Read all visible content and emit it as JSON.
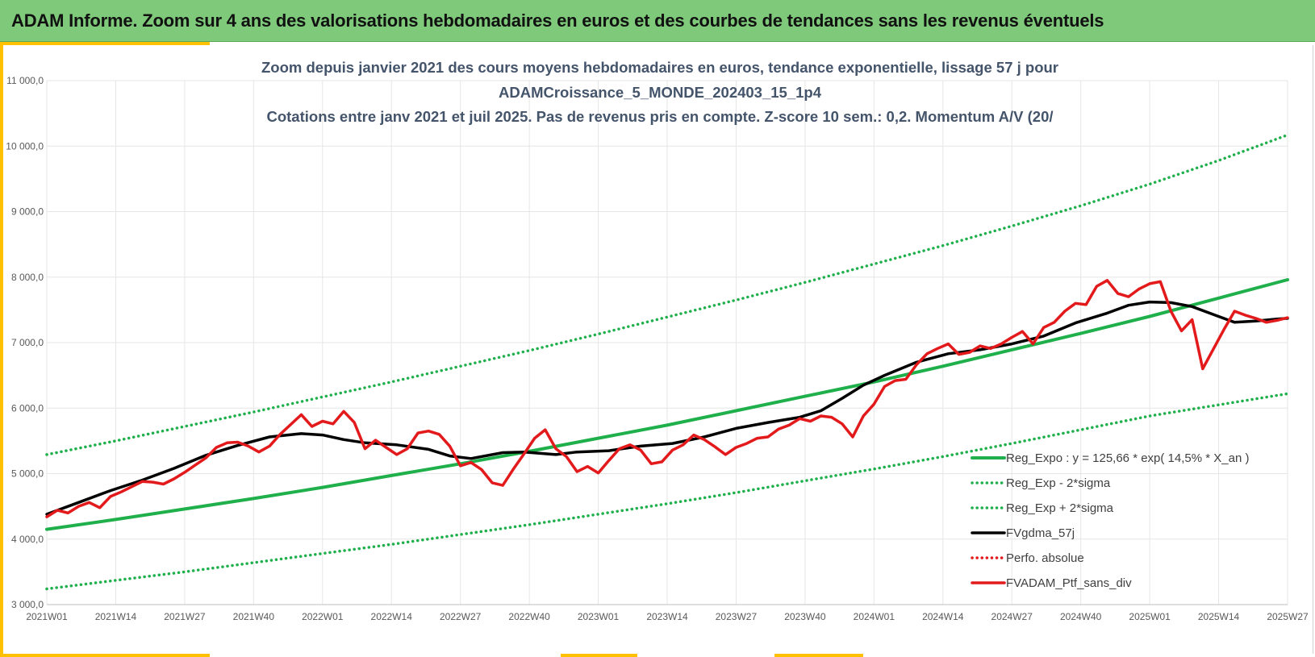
{
  "banner": {
    "title": "ADAM Informe. Zoom sur 4 ans des valorisations hebdomadaires en euros et des courbes de tendances sans les revenus éventuels"
  },
  "chart_data": {
    "type": "line",
    "title_lines": [
      "Zoom depuis janvier 2021 des cours moyens hebdomadaires  en euros, tendance exponentielle, lissage 57 j pour",
      "ADAMCroissance_5_MONDE_202403_15_1p4",
      "Cotations  entre janv 2021 et juil 2025. Pas de revenus pris en compte. Z-score 10 sem.: 0,2. Momentum  A/V (20/"
    ],
    "xlabel": "",
    "ylabel": "",
    "ylim": [
      3000,
      11000
    ],
    "y_ticks": [
      "3 000,0",
      "4 000,0",
      "5 000,0",
      "6 000,0",
      "7 000,0",
      "8 000,0",
      "9 000,0",
      "10 000,0",
      "11 000,0"
    ],
    "x_ticks": [
      "2021W01",
      "2021W14",
      "2021W27",
      "2021W40",
      "2022W01",
      "2022W14",
      "2022W27",
      "2022W40",
      "2023W01",
      "2023W14",
      "2023W27",
      "2023W40",
      "2024W01",
      "2024W14",
      "2024W27",
      "2024W40",
      "2025W01",
      "2025W14",
      "2025W27"
    ],
    "grid": true,
    "legend_position": "bottom-right",
    "colors": {
      "reg_expo": "#1fb04c",
      "sigma": "#1fb04c",
      "fvgdma": "#000000",
      "perfo": "#e31a1c",
      "ptf": "#e31a1c",
      "grid": "#e6e6e6"
    },
    "series": [
      {
        "name": "Reg_Expo : y = 125,66 * exp( 14,5% *  X_an )",
        "style": "solid",
        "points": [
          [
            0,
            4150
          ],
          [
            13,
            4300
          ],
          [
            26,
            4460
          ],
          [
            39,
            4620
          ],
          [
            52,
            4790
          ],
          [
            65,
            4970
          ],
          [
            78,
            5150
          ],
          [
            91,
            5340
          ],
          [
            104,
            5540
          ],
          [
            117,
            5740
          ],
          [
            130,
            5960
          ],
          [
            143,
            6180
          ],
          [
            156,
            6400
          ],
          [
            169,
            6640
          ],
          [
            182,
            6890
          ],
          [
            195,
            7140
          ],
          [
            208,
            7400
          ],
          [
            221,
            7680
          ],
          [
            234,
            7960
          ]
        ]
      },
      {
        "name": "Reg_Exp - 2*sigma",
        "style": "dotted",
        "points": [
          [
            0,
            3240
          ],
          [
            13,
            3370
          ],
          [
            26,
            3500
          ],
          [
            39,
            3640
          ],
          [
            52,
            3780
          ],
          [
            65,
            3920
          ],
          [
            78,
            4070
          ],
          [
            91,
            4220
          ],
          [
            104,
            4380
          ],
          [
            117,
            4540
          ],
          [
            130,
            4710
          ],
          [
            143,
            4890
          ],
          [
            156,
            5070
          ],
          [
            169,
            5260
          ],
          [
            182,
            5460
          ],
          [
            195,
            5670
          ],
          [
            208,
            5880
          ],
          [
            221,
            6050
          ],
          [
            234,
            6220
          ]
        ]
      },
      {
        "name": "Reg_Exp + 2*sigma",
        "style": "dotted",
        "points": [
          [
            0,
            5290
          ],
          [
            13,
            5500
          ],
          [
            26,
            5720
          ],
          [
            39,
            5940
          ],
          [
            52,
            6170
          ],
          [
            65,
            6400
          ],
          [
            78,
            6640
          ],
          [
            91,
            6880
          ],
          [
            104,
            7130
          ],
          [
            117,
            7390
          ],
          [
            130,
            7650
          ],
          [
            143,
            7920
          ],
          [
            156,
            8200
          ],
          [
            169,
            8480
          ],
          [
            182,
            8780
          ],
          [
            195,
            9090
          ],
          [
            208,
            9420
          ],
          [
            221,
            9780
          ],
          [
            234,
            10170
          ]
        ]
      },
      {
        "name": "FVgdma_57j",
        "style": "solid",
        "points": [
          [
            0,
            4380
          ],
          [
            6,
            4560
          ],
          [
            12,
            4740
          ],
          [
            18,
            4900
          ],
          [
            24,
            5080
          ],
          [
            30,
            5280
          ],
          [
            36,
            5430
          ],
          [
            42,
            5560
          ],
          [
            48,
            5610
          ],
          [
            52,
            5590
          ],
          [
            56,
            5520
          ],
          [
            60,
            5470
          ],
          [
            66,
            5440
          ],
          [
            72,
            5370
          ],
          [
            76,
            5270
          ],
          [
            80,
            5230
          ],
          [
            86,
            5320
          ],
          [
            90,
            5330
          ],
          [
            96,
            5290
          ],
          [
            100,
            5330
          ],
          [
            106,
            5350
          ],
          [
            112,
            5420
          ],
          [
            118,
            5460
          ],
          [
            124,
            5560
          ],
          [
            130,
            5690
          ],
          [
            136,
            5780
          ],
          [
            142,
            5860
          ],
          [
            146,
            5960
          ],
          [
            150,
            6150
          ],
          [
            154,
            6350
          ],
          [
            158,
            6500
          ],
          [
            164,
            6700
          ],
          [
            170,
            6830
          ],
          [
            176,
            6890
          ],
          [
            182,
            6980
          ],
          [
            188,
            7100
          ],
          [
            194,
            7300
          ],
          [
            200,
            7450
          ],
          [
            204,
            7570
          ],
          [
            208,
            7620
          ],
          [
            212,
            7610
          ],
          [
            216,
            7550
          ],
          [
            220,
            7430
          ],
          [
            224,
            7310
          ],
          [
            228,
            7330
          ],
          [
            232,
            7360
          ],
          [
            234,
            7370
          ]
        ]
      },
      {
        "name": "Perfo. absolue",
        "style": "dotted",
        "points": []
      },
      {
        "name": "FVADAM_Ptf_sans_div",
        "style": "solid",
        "points": [
          [
            0,
            4340
          ],
          [
            2,
            4440
          ],
          [
            4,
            4400
          ],
          [
            6,
            4500
          ],
          [
            8,
            4560
          ],
          [
            10,
            4480
          ],
          [
            12,
            4650
          ],
          [
            14,
            4720
          ],
          [
            16,
            4800
          ],
          [
            18,
            4880
          ],
          [
            20,
            4870
          ],
          [
            22,
            4840
          ],
          [
            24,
            4920
          ],
          [
            26,
            5020
          ],
          [
            28,
            5130
          ],
          [
            30,
            5240
          ],
          [
            32,
            5400
          ],
          [
            34,
            5470
          ],
          [
            36,
            5480
          ],
          [
            38,
            5420
          ],
          [
            40,
            5330
          ],
          [
            42,
            5420
          ],
          [
            44,
            5600
          ],
          [
            46,
            5750
          ],
          [
            48,
            5900
          ],
          [
            50,
            5720
          ],
          [
            52,
            5800
          ],
          [
            54,
            5760
          ],
          [
            56,
            5950
          ],
          [
            58,
            5780
          ],
          [
            60,
            5380
          ],
          [
            62,
            5510
          ],
          [
            64,
            5400
          ],
          [
            66,
            5290
          ],
          [
            68,
            5380
          ],
          [
            70,
            5620
          ],
          [
            72,
            5650
          ],
          [
            74,
            5600
          ],
          [
            76,
            5420
          ],
          [
            78,
            5120
          ],
          [
            80,
            5170
          ],
          [
            82,
            5060
          ],
          [
            84,
            4860
          ],
          [
            86,
            4820
          ],
          [
            88,
            5070
          ],
          [
            90,
            5300
          ],
          [
            92,
            5540
          ],
          [
            94,
            5670
          ],
          [
            96,
            5380
          ],
          [
            98,
            5260
          ],
          [
            100,
            5030
          ],
          [
            102,
            5110
          ],
          [
            104,
            5010
          ],
          [
            106,
            5200
          ],
          [
            108,
            5380
          ],
          [
            110,
            5440
          ],
          [
            112,
            5360
          ],
          [
            114,
            5150
          ],
          [
            116,
            5180
          ],
          [
            118,
            5360
          ],
          [
            120,
            5440
          ],
          [
            122,
            5590
          ],
          [
            124,
            5520
          ],
          [
            126,
            5410
          ],
          [
            128,
            5290
          ],
          [
            130,
            5400
          ],
          [
            132,
            5460
          ],
          [
            134,
            5540
          ],
          [
            136,
            5560
          ],
          [
            138,
            5680
          ],
          [
            140,
            5740
          ],
          [
            142,
            5840
          ],
          [
            144,
            5800
          ],
          [
            146,
            5880
          ],
          [
            148,
            5860
          ],
          [
            150,
            5760
          ],
          [
            152,
            5560
          ],
          [
            154,
            5880
          ],
          [
            156,
            6060
          ],
          [
            158,
            6330
          ],
          [
            160,
            6420
          ],
          [
            162,
            6440
          ],
          [
            164,
            6660
          ],
          [
            166,
            6830
          ],
          [
            168,
            6910
          ],
          [
            170,
            6980
          ],
          [
            172,
            6820
          ],
          [
            174,
            6850
          ],
          [
            176,
            6950
          ],
          [
            178,
            6910
          ],
          [
            180,
            6980
          ],
          [
            182,
            7080
          ],
          [
            184,
            7170
          ],
          [
            186,
            6980
          ],
          [
            188,
            7230
          ],
          [
            190,
            7310
          ],
          [
            192,
            7480
          ],
          [
            194,
            7600
          ],
          [
            196,
            7580
          ],
          [
            198,
            7860
          ],
          [
            200,
            7950
          ],
          [
            202,
            7750
          ],
          [
            204,
            7700
          ],
          [
            206,
            7820
          ],
          [
            208,
            7900
          ],
          [
            210,
            7930
          ],
          [
            212,
            7480
          ],
          [
            214,
            7180
          ],
          [
            216,
            7350
          ],
          [
            218,
            6600
          ],
          [
            220,
            6900
          ],
          [
            222,
            7200
          ],
          [
            224,
            7480
          ],
          [
            226,
            7420
          ],
          [
            228,
            7370
          ],
          [
            230,
            7310
          ],
          [
            232,
            7340
          ],
          [
            234,
            7380
          ]
        ]
      }
    ]
  }
}
